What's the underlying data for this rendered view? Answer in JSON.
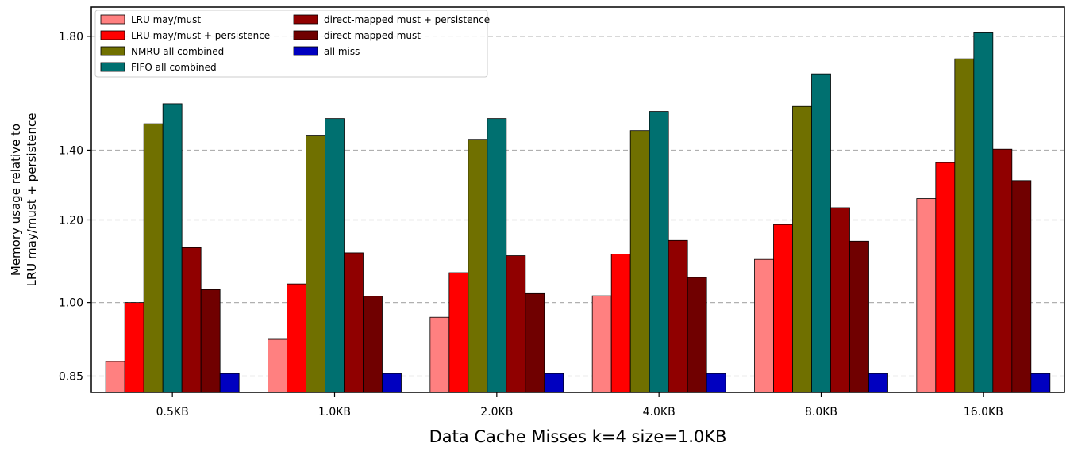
{
  "chart_data": {
    "type": "bar",
    "xlabel": "Data Cache Misses k=4 size=1.0KB",
    "ylabel": [
      "Memory usage relative to",
      "LRU may/must + persistence"
    ],
    "yscale": "log",
    "ylim": [
      0.82,
      1.92
    ],
    "yticks": [
      "0.85",
      "1.00",
      "1.20",
      "1.40",
      "1.80"
    ],
    "grid": "y-dashed",
    "legend_position": "top-left",
    "categories": [
      "0.5KB",
      "1.0KB",
      "2.0KB",
      "4.0KB",
      "8.0KB",
      "16.0KB"
    ],
    "series": [
      {
        "name": "LRU may/must",
        "color": "#ff8080",
        "values": [
          0.878,
          0.922,
          0.968,
          1.015,
          1.1,
          1.258
        ]
      },
      {
        "name": "LRU may/must + persistence",
        "color": "#ff0000",
        "values": [
          1.0,
          1.042,
          1.068,
          1.113,
          1.188,
          1.362
        ]
      },
      {
        "name": "NMRU all combined",
        "color": "#707000",
        "values": [
          1.484,
          1.447,
          1.434,
          1.462,
          1.542,
          1.713
        ]
      },
      {
        "name": "FIFO all combined",
        "color": "#007070",
        "values": [
          1.551,
          1.501,
          1.501,
          1.525,
          1.657,
          1.814
        ]
      },
      {
        "name": "direct-mapped must + persistence",
        "color": "#900000",
        "values": [
          1.129,
          1.116,
          1.109,
          1.147,
          1.233,
          1.403
        ]
      },
      {
        "name": "direct-mapped must",
        "color": "#700000",
        "values": [
          1.029,
          1.014,
          1.02,
          1.057,
          1.145,
          1.309
        ]
      },
      {
        "name": "all miss",
        "color": "#0000c0",
        "values": [
          0.855,
          0.855,
          0.855,
          0.855,
          0.855,
          0.855
        ]
      }
    ]
  }
}
